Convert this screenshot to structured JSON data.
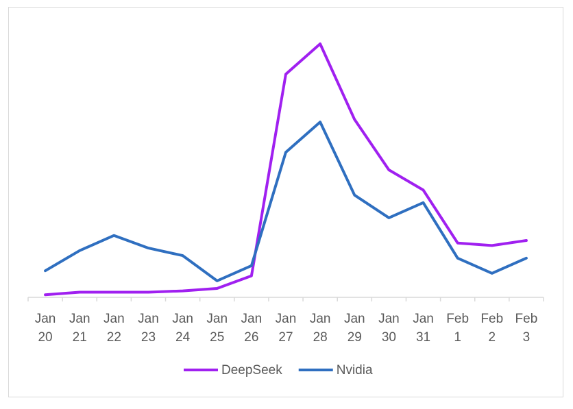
{
  "chart_data": {
    "type": "line",
    "title": "",
    "xlabel": "",
    "ylabel": "",
    "categories": [
      [
        "Jan",
        "20"
      ],
      [
        "Jan",
        "21"
      ],
      [
        "Jan",
        "22"
      ],
      [
        "Jan",
        "23"
      ],
      [
        "Jan",
        "24"
      ],
      [
        "Jan",
        "25"
      ],
      [
        "Jan",
        "26"
      ],
      [
        "Jan",
        "27"
      ],
      [
        "Jan",
        "28"
      ],
      [
        "Jan",
        "29"
      ],
      [
        "Jan",
        "30"
      ],
      [
        "Jan",
        "31"
      ],
      [
        "Feb",
        "1"
      ],
      [
        "Feb",
        "2"
      ],
      [
        "Feb",
        "3"
      ]
    ],
    "ylim": [
      0,
      100
    ],
    "grid": false,
    "y_axis_visible": false,
    "legend_position": "bottom",
    "series": [
      {
        "name": "DeepSeek",
        "color": "#a020f0",
        "values": [
          0.5,
          1.5,
          1.5,
          1.5,
          2,
          3,
          8,
          88,
          100,
          70,
          50,
          42,
          21,
          20,
          22
        ]
      },
      {
        "name": "Nvidia",
        "color": "#2f6fc0",
        "values": [
          10,
          18,
          24,
          19,
          16,
          6,
          12,
          57,
          69,
          40,
          31,
          37,
          15,
          9,
          15
        ]
      }
    ]
  }
}
